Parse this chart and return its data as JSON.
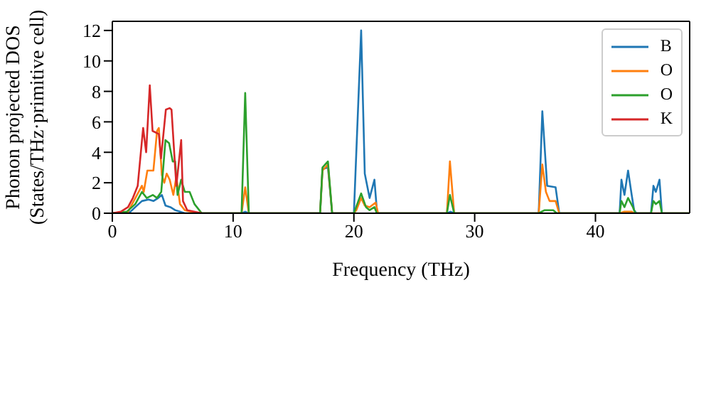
{
  "chart_data": {
    "type": "line",
    "xlabel": "Frequency (THz)",
    "ylabel": "Phonon projected DOS\n(States/THz·primitive cell)",
    "xlim": [
      0,
      47.8
    ],
    "ylim": [
      0,
      12.6
    ],
    "xticks": [
      0,
      10,
      20,
      30,
      40
    ],
    "yticks": [
      0,
      2,
      4,
      6,
      8,
      10,
      12
    ],
    "legend": "top right",
    "marker": "none",
    "line_style": "solid",
    "series": [
      {
        "name": "B",
        "color": "#1f77b4",
        "x": [
          0,
          1.5,
          1.9,
          2.45,
          3.0,
          3.4,
          3.8,
          4.1,
          4.4,
          4.8,
          5.2,
          5.6,
          6.0,
          10.7,
          11.0,
          11.3,
          17.2,
          17.4,
          17.85,
          18.2,
          20.0,
          20.6,
          20.9,
          21.3,
          21.7,
          21.9,
          22.0,
          27.7,
          28.0,
          28.3,
          35.3,
          35.6,
          36.0,
          36.7,
          37.0,
          42.0,
          42.15,
          42.4,
          42.7,
          43.0,
          43.2,
          43.4,
          44.6,
          44.8,
          45.0,
          45.3,
          45.5,
          47.8
        ],
        "values": [
          0,
          0.1,
          0.4,
          0.8,
          0.9,
          0.8,
          1.0,
          1.2,
          0.5,
          0.4,
          0.2,
          0.1,
          0,
          0,
          0.1,
          0,
          0,
          2.9,
          3.0,
          0,
          0,
          12.0,
          2.6,
          1.0,
          2.2,
          0.2,
          0,
          0,
          0.1,
          0,
          0,
          6.7,
          1.8,
          1.7,
          0,
          0,
          2.2,
          1.2,
          2.8,
          1.2,
          0.2,
          0,
          0,
          1.8,
          1.4,
          2.2,
          0,
          0
        ]
      },
      {
        "name": "O",
        "color": "#ff7f0e",
        "x": [
          0,
          1.3,
          2.45,
          2.6,
          2.9,
          3.4,
          3.7,
          3.85,
          4.1,
          4.3,
          4.5,
          4.75,
          5.05,
          5.3,
          5.6,
          6.0,
          7.0,
          10.7,
          11.0,
          11.3,
          17.2,
          17.4,
          17.85,
          18.2,
          20.0,
          20.2,
          20.6,
          20.9,
          21.3,
          21.8,
          22.0,
          27.7,
          27.95,
          28.3,
          35.3,
          35.6,
          35.9,
          36.2,
          36.7,
          37.0,
          42.0,
          42.4,
          43.0,
          43.2,
          47.8
        ],
        "values": [
          0,
          0.1,
          1.8,
          1.4,
          2.8,
          2.8,
          5.4,
          5.6,
          2.5,
          2.0,
          2.6,
          2.2,
          1.2,
          2.4,
          0.6,
          0.2,
          0,
          0,
          1.7,
          0,
          0,
          2.8,
          3.2,
          0,
          0,
          0.2,
          1.0,
          0.5,
          0.4,
          0.7,
          0,
          0,
          3.4,
          0,
          0,
          3.2,
          1.4,
          0.8,
          0.8,
          0,
          0,
          0.1,
          0.1,
          0,
          0
        ]
      },
      {
        "name": "O",
        "color": "#2ca02c",
        "x": [
          0,
          1.2,
          1.9,
          2.45,
          2.85,
          3.35,
          3.7,
          4.05,
          4.4,
          4.7,
          5.0,
          5.2,
          5.4,
          5.7,
          6.0,
          6.4,
          6.8,
          7.4,
          10.7,
          11.0,
          11.3,
          17.2,
          17.4,
          17.85,
          18.2,
          20.0,
          20.6,
          21.0,
          21.3,
          21.7,
          21.9,
          27.7,
          27.95,
          28.3,
          35.3,
          35.8,
          36.5,
          36.8,
          42.0,
          42.15,
          42.4,
          42.7,
          43.1,
          43.3,
          44.6,
          44.8,
          45.0,
          45.3,
          45.5,
          47.8
        ],
        "values": [
          0,
          0.1,
          0.6,
          1.4,
          1.0,
          1.2,
          1.0,
          1.4,
          4.8,
          4.6,
          3.4,
          3.4,
          1.2,
          2.2,
          1.4,
          1.4,
          0.6,
          0,
          0,
          7.9,
          0,
          0,
          3.0,
          3.4,
          0,
          0,
          1.3,
          0.4,
          0.2,
          0.4,
          0,
          0,
          1.2,
          0,
          0,
          0.2,
          0.2,
          0,
          0,
          0.8,
          0.4,
          1.0,
          0.4,
          0,
          0,
          0.8,
          0.6,
          0.8,
          0,
          0
        ]
      },
      {
        "name": "K",
        "color": "#d62728",
        "x": [
          0,
          0.7,
          1.3,
          1.7,
          2.1,
          2.55,
          2.8,
          3.1,
          3.33,
          3.85,
          4.03,
          4.43,
          4.74,
          4.9,
          5.2,
          5.3,
          5.7,
          5.85,
          6.2,
          7.4
        ],
        "values": [
          0,
          0.1,
          0.4,
          1.0,
          1.8,
          5.6,
          4.0,
          8.4,
          5.4,
          5.2,
          3.6,
          6.8,
          6.9,
          6.8,
          3.0,
          1.8,
          4.8,
          0.8,
          0.2,
          0
        ]
      }
    ]
  }
}
